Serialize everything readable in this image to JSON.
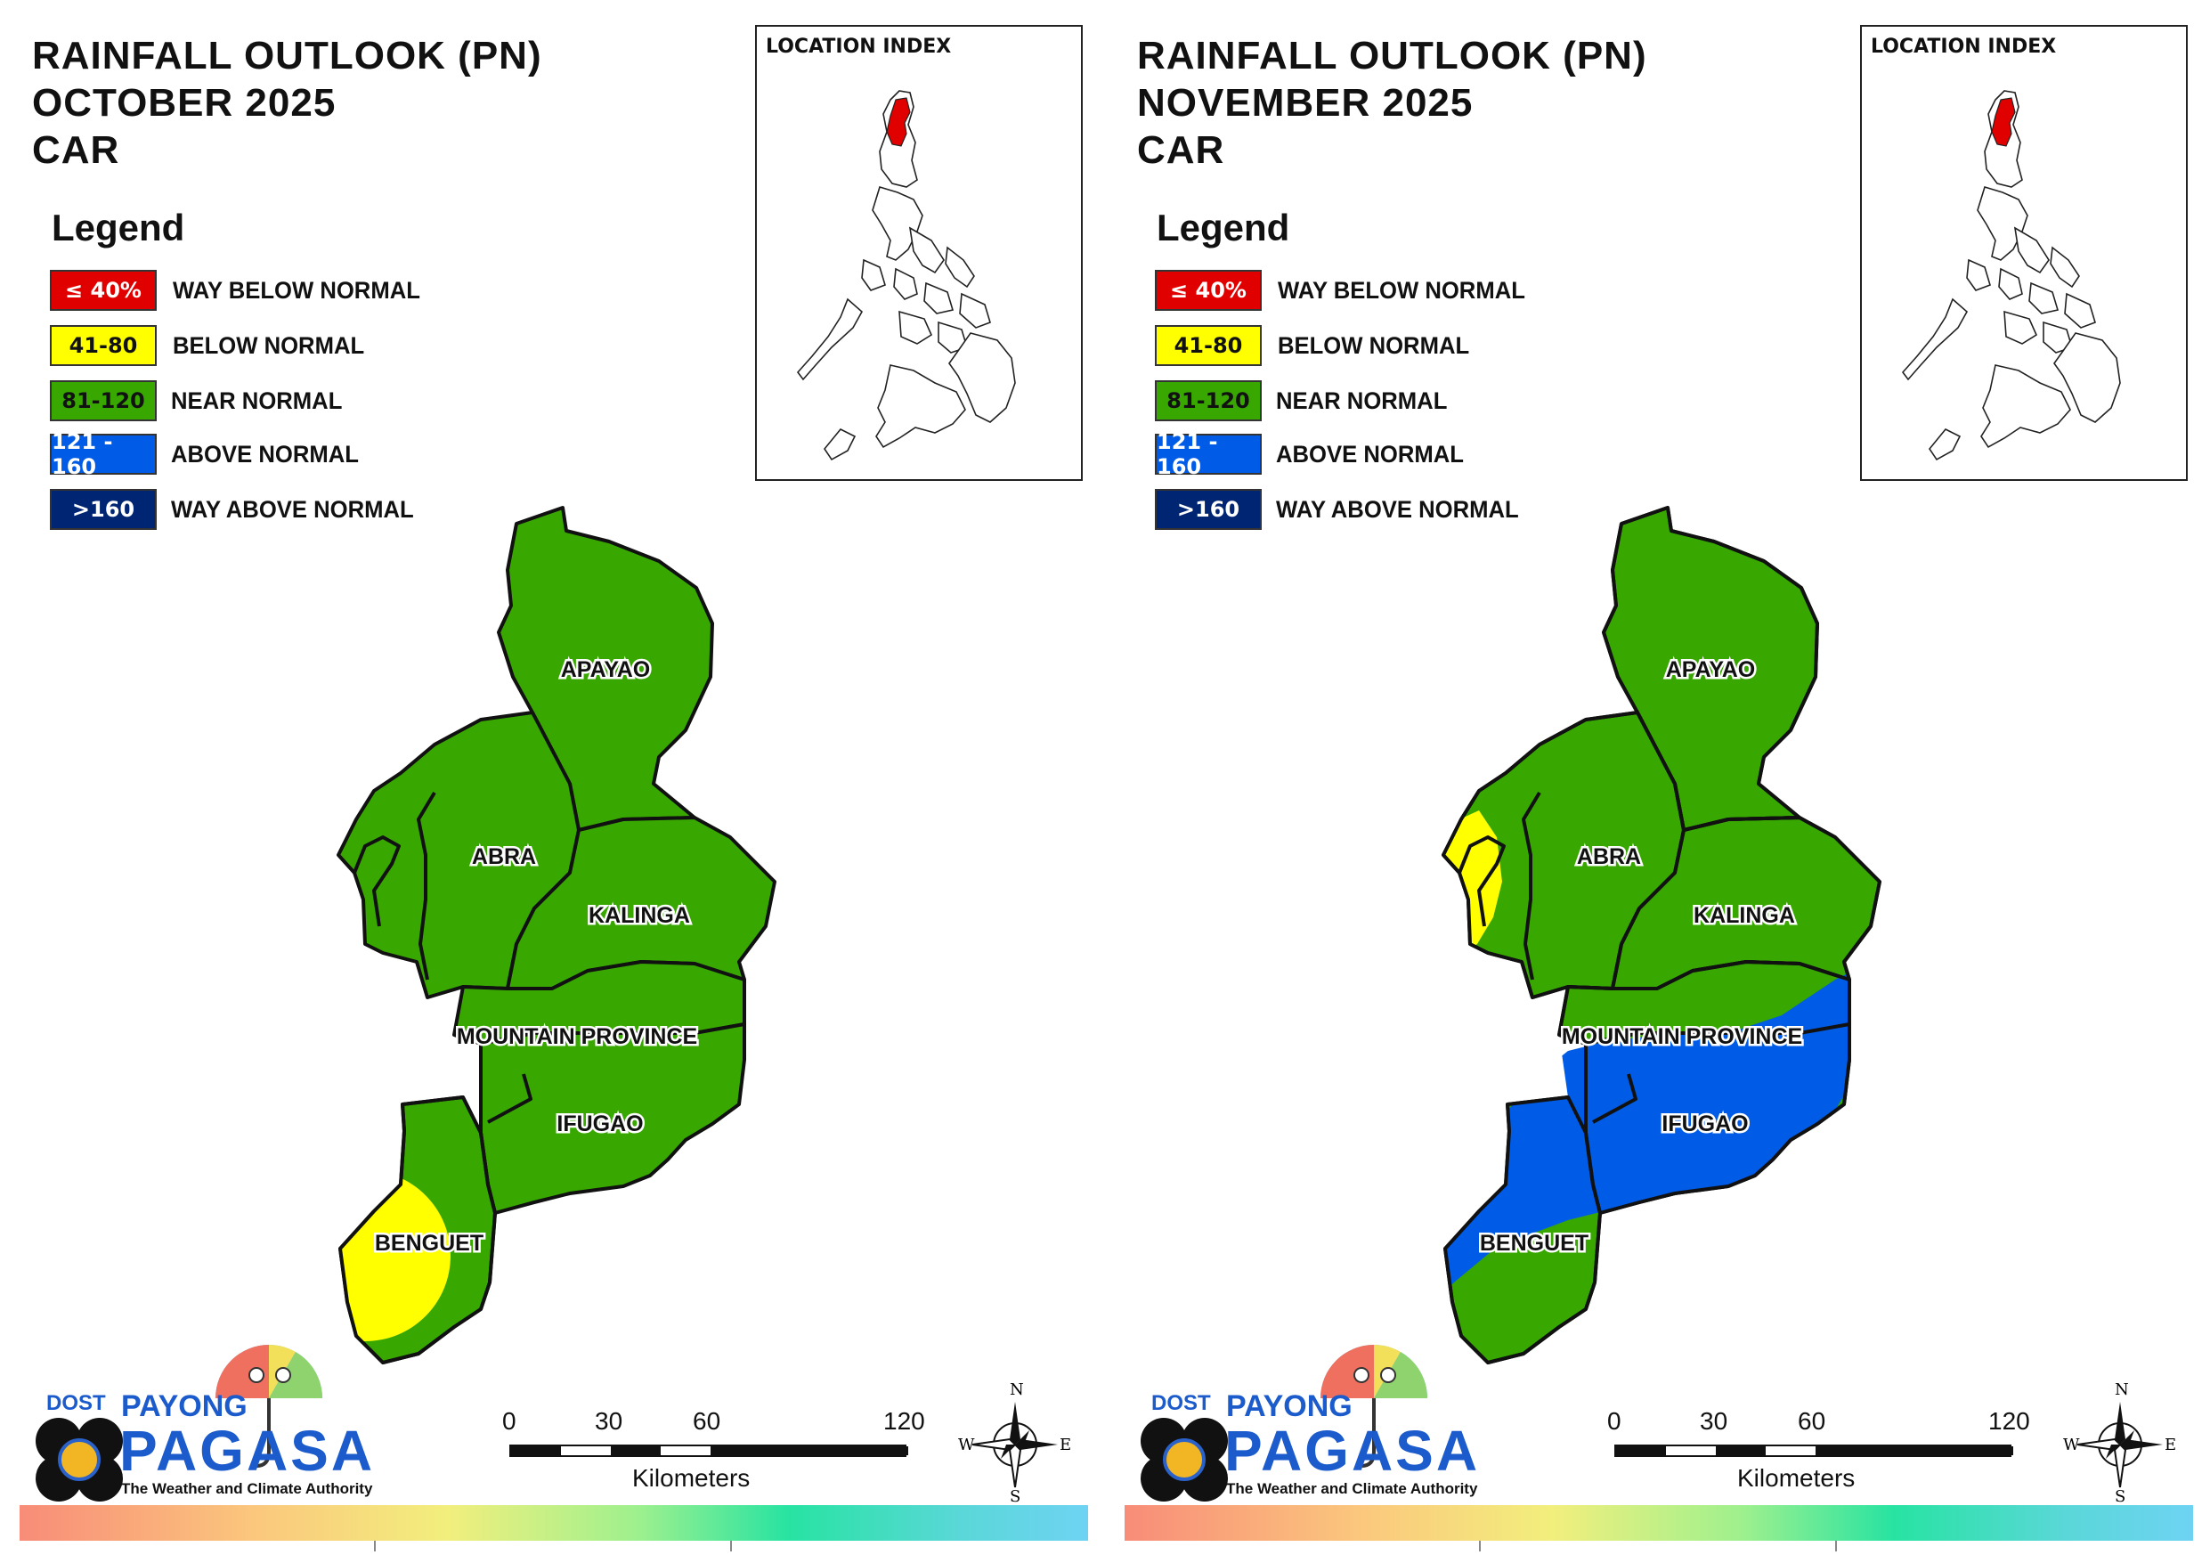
{
  "legend": {
    "title": "Legend",
    "items": [
      {
        "range": "≤ 40%",
        "label": "WAY BELOW NORMAL",
        "color": "#e00000",
        "text_color": "#ffffff"
      },
      {
        "range": "41-80",
        "label": "BELOW NORMAL",
        "color": "#ffff00",
        "text_color": "#111111"
      },
      {
        "range": "81-120",
        "label": "NEAR NORMAL",
        "color": "#38a800",
        "text_color": "#111111"
      },
      {
        "range": "121 - 160",
        "label": "ABOVE NORMAL",
        "color": "#005ce6",
        "text_color": "#ffffff"
      },
      {
        "range": ">160",
        "label": "WAY ABOVE NORMAL",
        "color": "#002673",
        "text_color": "#ffffff"
      }
    ]
  },
  "location_index": {
    "title": "LOCATION INDEX",
    "highlight_color": "#e00000"
  },
  "provinces": [
    "APAYAO",
    "ABRA",
    "KALINGA",
    "MOUNTAIN PROVINCE",
    "IFUGAO",
    "BENGUET"
  ],
  "scale": {
    "ticks": [
      "0",
      "30",
      "60",
      "120"
    ],
    "unit": "Kilometers"
  },
  "compass": {
    "n": "N",
    "s": "S",
    "e": "E",
    "w": "W"
  },
  "logo": {
    "dost": "DOST",
    "payong": "PAYONG",
    "pagasa": "PAGASA",
    "tagline": "The Weather and Climate Authority"
  },
  "panels": [
    {
      "title_lines": [
        "RAINFALL OUTLOOK (PN)",
        "OCTOBER 2025",
        "CAR"
      ],
      "province_category": {
        "APAYAO": "NEAR NORMAL",
        "ABRA": "NEAR NORMAL",
        "KALINGA": "NEAR NORMAL",
        "MOUNTAIN PROVINCE": "NEAR NORMAL",
        "IFUGAO": "NEAR NORMAL",
        "BENGUET": "NEAR NORMAL, western part BELOW NORMAL"
      }
    },
    {
      "title_lines": [
        "RAINFALL OUTLOOK (PN)",
        "NOVEMBER 2025",
        "CAR"
      ],
      "province_category": {
        "APAYAO": "NEAR NORMAL",
        "ABRA": "NEAR NORMAL, western coast BELOW NORMAL",
        "KALINGA": "NEAR NORMAL",
        "MOUNTAIN PROVINCE": "NEAR NORMAL, eastern part ABOVE NORMAL",
        "IFUGAO": "ABOVE NORMAL",
        "BENGUET": "ABOVE NORMAL, southern part NEAR NORMAL"
      }
    }
  ]
}
